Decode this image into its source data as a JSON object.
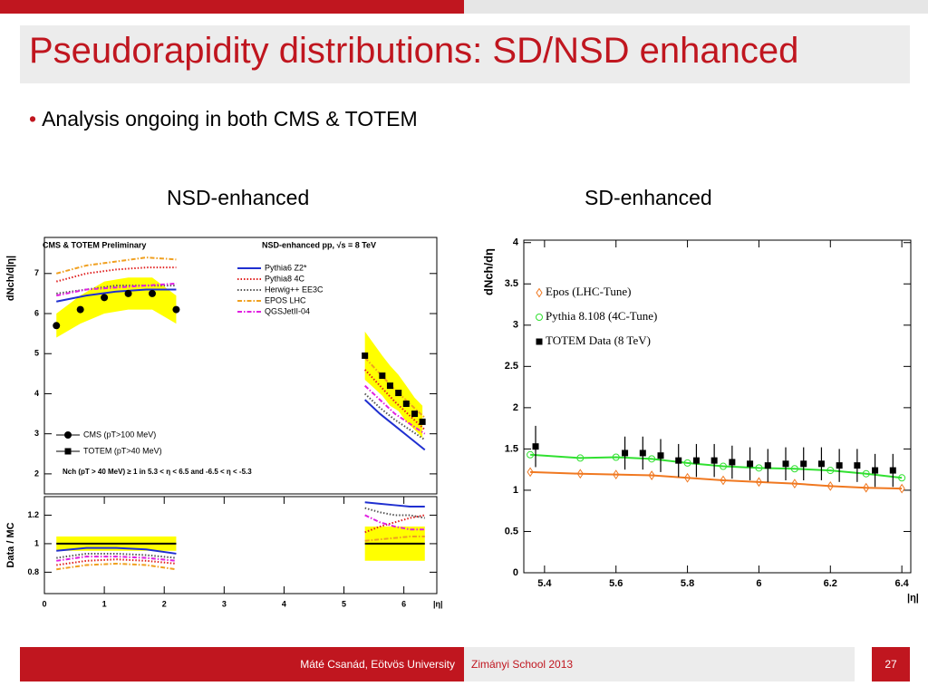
{
  "slide": {
    "title": "Pseudorapidity distributions: SD/NSD enhanced",
    "bullet": "Analysis ongoing in both CMS & TOTEM",
    "captions": [
      "NSD-enhanced",
      "SD-enhanced"
    ]
  },
  "footer": {
    "author": "Máté Csanád, Eötvös University",
    "event": "Zimányi School 2013",
    "page": 27
  },
  "chart_data": [
    {
      "type": "line",
      "title": "CMS & TOTEM Preliminary",
      "subtitle": "NSD-enhanced pp, √s = 8 TeV",
      "ylabel": "dNch/d|η|",
      "annotation": "Nch (pT > 40 MeV) ≥ 1 in 5.3 < η < 6.5 and -6.5 < η < -5.3",
      "xlim": [
        0,
        6.55
      ],
      "ylim": [
        1.5,
        7.9
      ],
      "yticks": [
        2,
        3,
        4,
        5,
        6,
        7
      ],
      "series": [
        {
          "name": "Pythia6 Z2*",
          "color": "#1f2fd0",
          "dash": "solid",
          "legend": "upper right",
          "x": [
            0.2,
            0.7,
            1.2,
            1.7,
            2.2,
            3.8,
            5.35,
            5.6,
            5.85,
            6.1,
            6.35
          ],
          "values": [
            6.3,
            6.45,
            6.55,
            6.6,
            6.6,
            null,
            3.85,
            3.5,
            3.2,
            2.9,
            2.6
          ]
        },
        {
          "name": "Pythia8 4C",
          "color": "#e02020",
          "dash": "dotted",
          "legend": "upper right",
          "x": [
            0.2,
            0.7,
            1.2,
            1.7,
            2.2,
            3.8,
            5.35,
            5.6,
            5.85,
            6.1,
            6.35
          ],
          "values": [
            6.8,
            7.0,
            7.1,
            7.15,
            7.15,
            null,
            4.6,
            4.2,
            3.8,
            3.45,
            3.1
          ]
        },
        {
          "name": "Herwig++ EE3C",
          "color": "#555555",
          "dash": "dotted",
          "legend": "upper right",
          "x": [
            0.2,
            0.7,
            1.2,
            1.7,
            2.2,
            3.8,
            5.35,
            5.6,
            5.85,
            6.1,
            6.35
          ],
          "values": [
            6.5,
            6.6,
            6.7,
            6.7,
            6.7,
            null,
            4.0,
            3.65,
            3.35,
            3.1,
            2.85
          ]
        },
        {
          "name": "EPOS LHC",
          "color": "#f0a020",
          "dash": "dashdot",
          "legend": "upper right",
          "x": [
            0.2,
            0.7,
            1.2,
            1.7,
            2.2,
            3.8,
            5.35,
            5.6,
            5.85,
            6.1,
            6.35
          ],
          "values": [
            7.0,
            7.2,
            7.3,
            7.4,
            7.35,
            null,
            4.9,
            4.5,
            4.1,
            3.75,
            3.4
          ]
        },
        {
          "name": "QGSJetII-04",
          "color": "#e020e0",
          "dash": "dashdot",
          "legend": "upper right",
          "x": [
            0.2,
            0.7,
            1.2,
            1.7,
            2.2,
            3.8,
            5.35,
            5.6,
            5.85,
            6.1,
            6.35
          ],
          "values": [
            6.45,
            6.6,
            6.65,
            6.7,
            6.75,
            null,
            4.2,
            3.85,
            3.5,
            3.25,
            3.0
          ]
        },
        {
          "name": "CMS (pT>100 MeV)",
          "color": "#000000",
          "marker": "circle",
          "legend": "lower left",
          "band": "#ffff00",
          "x": [
            0.2,
            0.6,
            1.0,
            1.4,
            1.8,
            2.2
          ],
          "values": [
            5.7,
            6.1,
            6.4,
            6.5,
            6.5,
            6.1
          ],
          "errors": [
            0.3,
            0.35,
            0.4,
            0.4,
            0.4,
            0.35
          ]
        },
        {
          "name": "TOTEM (pT>40 MeV)",
          "color": "#000000",
          "marker": "square",
          "legend": "lower left",
          "band": "#ffff00",
          "x": [
            5.35,
            5.64,
            5.77,
            5.91,
            6.04,
            6.18,
            6.31
          ],
          "values": [
            4.95,
            4.45,
            4.2,
            4.02,
            3.75,
            3.5,
            3.3
          ],
          "errors": [
            0.6,
            0.5,
            0.5,
            0.45,
            0.45,
            0.4,
            0.4
          ]
        }
      ]
    },
    {
      "type": "line",
      "ylabel": "Data / MC",
      "xlabel": "|η|",
      "xlim": [
        0,
        6.55
      ],
      "ylim": [
        0.65,
        1.33
      ],
      "yticks": [
        0.8,
        1,
        1.2
      ],
      "xticks": [
        0,
        1,
        2,
        3,
        4,
        5,
        6
      ],
      "series": [
        {
          "color": "#000000",
          "dash": "solid",
          "band": "#ffff00",
          "x": [
            0.2,
            2.2,
            3.8,
            5.35,
            6.35
          ],
          "values": [
            1,
            1,
            null,
            1,
            1
          ],
          "errors": [
            0.05,
            0.05,
            null,
            0.12,
            0.12
          ]
        },
        {
          "color": "#1f2fd0",
          "dash": "solid",
          "x": [
            0.2,
            0.7,
            1.2,
            1.7,
            2.2,
            3.8,
            5.35,
            5.6,
            5.85,
            6.1,
            6.35
          ],
          "values": [
            0.95,
            0.97,
            0.97,
            0.96,
            0.93,
            null,
            1.29,
            1.28,
            1.27,
            1.26,
            1.26
          ]
        },
        {
          "color": "#e02020",
          "dash": "dotted",
          "x": [
            0.2,
            0.7,
            1.2,
            1.7,
            2.2,
            3.8,
            5.35,
            5.6,
            5.85,
            6.1,
            6.35
          ],
          "values": [
            0.85,
            0.88,
            0.89,
            0.88,
            0.86,
            null,
            1.08,
            1.12,
            1.15,
            1.18,
            1.2
          ]
        },
        {
          "color": "#555555",
          "dash": "dotted",
          "x": [
            0.2,
            0.7,
            1.2,
            1.7,
            2.2,
            3.8,
            5.35,
            5.6,
            5.85,
            6.1,
            6.35
          ],
          "values": [
            0.9,
            0.93,
            0.93,
            0.92,
            0.9,
            null,
            1.25,
            1.22,
            1.2,
            1.2,
            1.18
          ]
        },
        {
          "color": "#f0a020",
          "dash": "dashdot",
          "x": [
            0.2,
            0.7,
            1.2,
            1.7,
            2.2,
            3.8,
            5.35,
            5.6,
            5.85,
            6.1,
            6.35
          ],
          "values": [
            0.82,
            0.85,
            0.86,
            0.85,
            0.82,
            null,
            1.02,
            1.03,
            1.04,
            1.05,
            1.05
          ]
        },
        {
          "color": "#e020e0",
          "dash": "dashdot",
          "x": [
            0.2,
            0.7,
            1.2,
            1.7,
            2.2,
            3.8,
            5.35,
            5.6,
            5.85,
            6.1,
            6.35
          ],
          "values": [
            0.88,
            0.91,
            0.91,
            0.9,
            0.88,
            null,
            1.2,
            1.15,
            1.12,
            1.1,
            1.1
          ]
        }
      ]
    },
    {
      "type": "line",
      "ylabel": "dNch/dη",
      "xlabel": "|η|",
      "xlim": [
        5.342,
        6.425
      ],
      "ylim": [
        0,
        4.03
      ],
      "yticks": [
        0,
        0.5,
        1,
        1.5,
        2,
        2.5,
        3,
        3.5,
        4
      ],
      "xticks": [
        5.4,
        5.6,
        5.8,
        6,
        6.2,
        6.4
      ],
      "series": [
        {
          "name": "Epos (LHC-Tune)",
          "color": "#f07820",
          "dash": "solid",
          "marker": "diamond-open",
          "legend": "upper left",
          "x": [
            5.36,
            5.5,
            5.6,
            5.7,
            5.8,
            5.9,
            6.0,
            6.1,
            6.2,
            6.3,
            6.4
          ],
          "values": [
            1.22,
            1.2,
            1.19,
            1.18,
            1.15,
            1.12,
            1.1,
            1.08,
            1.05,
            1.03,
            1.02
          ]
        },
        {
          "name": "Pythia 8.108 (4C-Tune)",
          "color": "#30e030",
          "dash": "solid",
          "marker": "circle-open",
          "legend": "upper left",
          "x": [
            5.36,
            5.5,
            5.6,
            5.7,
            5.8,
            5.9,
            6.0,
            6.1,
            6.2,
            6.3,
            6.4
          ],
          "values": [
            1.43,
            1.39,
            1.4,
            1.38,
            1.33,
            1.29,
            1.27,
            1.26,
            1.24,
            1.2,
            1.15
          ]
        },
        {
          "name": "TOTEM Data (8 TeV)",
          "color": "#000000",
          "marker": "square",
          "legend": "upper left",
          "x": [
            5.375,
            5.625,
            5.675,
            5.725,
            5.775,
            5.825,
            5.875,
            5.925,
            5.975,
            6.025,
            6.075,
            6.125,
            6.175,
            6.225,
            6.275,
            6.325,
            6.375
          ],
          "values": [
            1.53,
            1.45,
            1.45,
            1.42,
            1.36,
            1.36,
            1.36,
            1.34,
            1.32,
            1.3,
            1.32,
            1.32,
            1.32,
            1.3,
            1.3,
            1.24,
            1.24
          ],
          "errors": [
            0.25,
            0.2,
            0.2,
            0.2,
            0.2,
            0.2,
            0.2,
            0.2,
            0.2,
            0.2,
            0.2,
            0.2,
            0.2,
            0.2,
            0.2,
            0.2,
            0.2
          ]
        }
      ]
    }
  ]
}
